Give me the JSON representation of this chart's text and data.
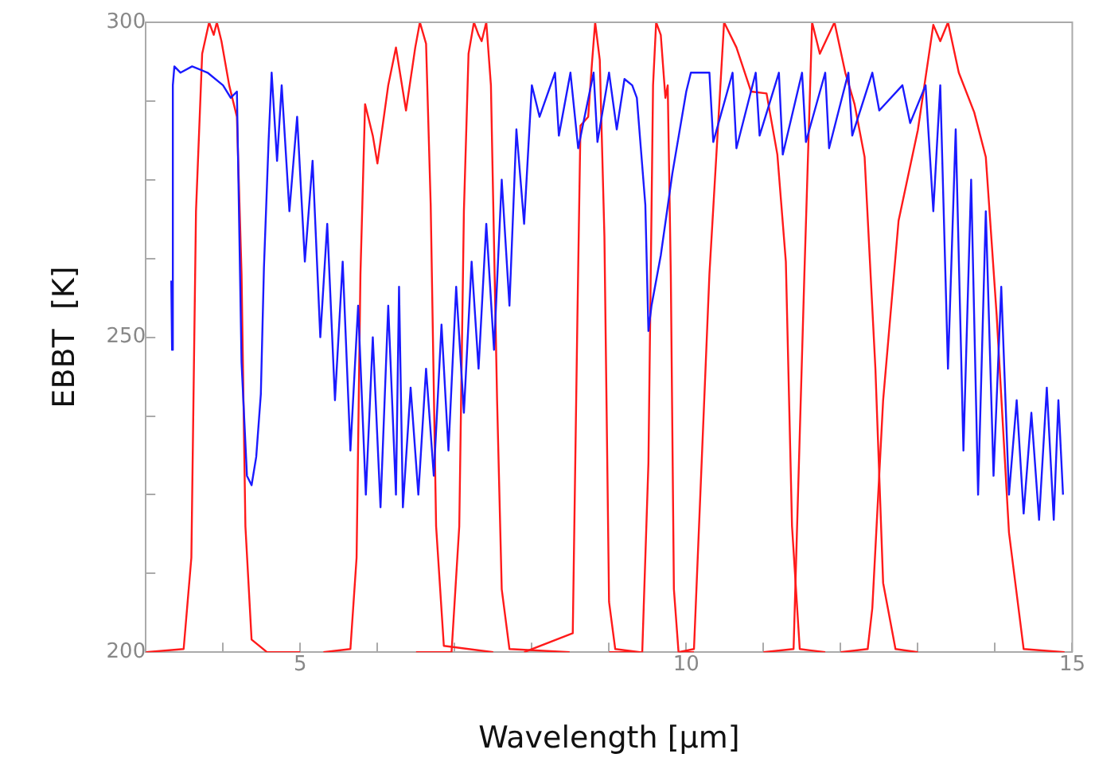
{
  "chart_data": {
    "type": "line",
    "xlabel": "Wavelength [μm]",
    "ylabel": "EBBT  [K]",
    "xlim": [
      3,
      15
    ],
    "ylim": [
      200,
      300
    ],
    "legend": false,
    "grid": false,
    "marker": "none",
    "xticks": [
      {
        "value": 3,
        "label": null
      },
      {
        "value": 4,
        "label": null
      },
      5,
      {
        "value": 6,
        "label": null
      },
      {
        "value": 7,
        "label": null
      },
      {
        "value": 8,
        "label": null
      },
      {
        "value": 9,
        "label": null
      },
      10,
      {
        "value": 11,
        "label": null
      },
      {
        "value": 12,
        "label": null
      },
      {
        "value": 13,
        "label": null
      },
      {
        "value": 14,
        "label": null
      },
      15
    ],
    "yticks": [
      200,
      {
        "value": 212.5,
        "label": null
      },
      {
        "value": 225,
        "label": null
      },
      {
        "value": 237.5,
        "label": null
      },
      250,
      {
        "value": 262.5,
        "label": null
      },
      {
        "value": 275,
        "label": null
      },
      {
        "value": 287.5,
        "label": null
      },
      300
    ],
    "series": [
      {
        "color": "#1a1aff",
        "x": [
          3.33,
          3.34,
          3.35,
          3.37,
          3.45,
          3.6,
          3.8,
          4.0,
          4.1,
          4.18,
          4.24,
          4.31,
          4.37,
          4.43,
          4.49,
          4.53,
          4.59,
          4.63,
          4.7,
          4.76,
          4.86,
          4.96,
          5.06,
          5.16,
          5.26,
          5.35,
          5.45,
          5.55,
          5.65,
          5.75,
          5.85,
          5.94,
          6.04,
          6.14,
          6.24,
          6.28,
          6.33,
          6.43,
          6.53,
          6.63,
          6.73,
          6.83,
          6.92,
          7.02,
          7.12,
          7.22,
          7.31,
          7.41,
          7.51,
          7.61,
          7.71,
          7.8,
          7.9,
          8.0,
          8.1,
          8.3,
          8.35,
          8.5,
          8.6,
          8.8,
          8.85,
          9.0,
          9.1,
          9.2,
          9.3,
          9.36,
          9.47,
          9.51,
          9.55,
          9.67,
          9.82,
          10.0,
          10.06,
          10.3,
          10.35,
          10.6,
          10.65,
          10.9,
          10.95,
          11.2,
          11.25,
          11.5,
          11.55,
          11.8,
          11.85,
          12.1,
          12.15,
          12.41,
          12.5,
          12.8,
          12.9,
          13.1,
          13.2,
          13.29,
          13.39,
          13.49,
          13.59,
          13.69,
          13.78,
          13.88,
          13.98,
          14.08,
          14.18,
          14.28,
          14.37,
          14.47,
          14.57,
          14.67,
          14.76,
          14.82,
          14.88
        ],
        "values": [
          259,
          248,
          290,
          293,
          292,
          293,
          292,
          290,
          288,
          289,
          246,
          228,
          226.5,
          231,
          241,
          261,
          281,
          292,
          278,
          290,
          270,
          285,
          262,
          278,
          250,
          268,
          240,
          262,
          232,
          255,
          225,
          250,
          223,
          255,
          225,
          258,
          223,
          242,
          225,
          245,
          228,
          252,
          232,
          258,
          238,
          262,
          245,
          268,
          248,
          275,
          255,
          283,
          268,
          290,
          285,
          292,
          282,
          292,
          280,
          292,
          281,
          292,
          283,
          291,
          290,
          288,
          271,
          251,
          255,
          263,
          276,
          289,
          292,
          292,
          281,
          292,
          280,
          292,
          282,
          292,
          279,
          292,
          281,
          292,
          280,
          292,
          282,
          292,
          286,
          290,
          284,
          290,
          270,
          290,
          245,
          283,
          232,
          275,
          225,
          270,
          228,
          258,
          225,
          240,
          222,
          238,
          221,
          242,
          221,
          240,
          225
        ]
      },
      {
        "color": "#ff1a1a",
        "x": [
          3.0,
          3.49,
          3.59,
          3.65,
          3.73,
          3.82,
          3.88,
          3.92,
          3.98,
          4.08,
          4.18,
          4.24,
          4.29,
          4.37,
          4.57,
          5.0
        ],
        "values": [
          200,
          200.5,
          215,
          270,
          295,
          300,
          298,
          300,
          297,
          290,
          285,
          260,
          220,
          202,
          200,
          200
        ]
      },
      {
        "color": "#ff1a1a",
        "x": [
          5.3,
          5.65,
          5.73,
          5.78,
          5.84,
          5.94,
          6.0,
          6.14,
          6.24,
          6.37,
          6.49,
          6.55,
          6.63,
          6.69,
          6.76,
          6.86,
          7.5
        ],
        "values": [
          200,
          200.5,
          215,
          260,
          287,
          282,
          277.6,
          290,
          296,
          286,
          296,
          300,
          296.6,
          271,
          220,
          201,
          200
        ]
      },
      {
        "color": "#ff1a1a",
        "x": [
          6.5,
          6.96,
          7.06,
          7.12,
          7.18,
          7.25,
          7.31,
          7.35,
          7.41,
          7.47,
          7.55,
          7.61,
          7.71,
          8.49
        ],
        "values": [
          200,
          200,
          220,
          270,
          295,
          300,
          298,
          297,
          300,
          290,
          240,
          210,
          200.5,
          200
        ]
      },
      {
        "color": "#ff1a1a",
        "x": [
          7.9,
          8.53,
          8.59,
          8.63,
          8.73,
          8.78,
          8.82,
          8.88,
          8.94,
          9.0,
          9.08,
          9.4
        ],
        "values": [
          200,
          203,
          253,
          283.6,
          285,
          293.7,
          300,
          294,
          266,
          208,
          200.5,
          200
        ]
      },
      {
        "color": "#ff1a1a",
        "x": [
          9.0,
          9.43,
          9.51,
          9.57,
          9.61,
          9.67,
          9.73,
          9.76,
          9.8,
          9.84,
          9.9,
          10.1
        ],
        "values": [
          200,
          200,
          230,
          290,
          300,
          298,
          288,
          290,
          260,
          210,
          200,
          200
        ]
      },
      {
        "color": "#ff1a1a",
        "x": [
          9.9,
          10.1,
          10.3,
          10.49,
          10.65,
          10.84,
          11.04,
          11.18,
          11.29,
          11.37,
          11.47,
          11.8
        ],
        "values": [
          200,
          200.5,
          260,
          300,
          296,
          289,
          288.7,
          279,
          262,
          220,
          200.5,
          200
        ]
      },
      {
        "color": "#ff1a1a",
        "x": [
          11.0,
          11.39,
          11.53,
          11.63,
          11.73,
          11.92,
          12.06,
          12.18,
          12.31,
          12.45,
          12.55,
          12.71,
          13.0
        ],
        "values": [
          200,
          200.5,
          260,
          300,
          295,
          300,
          292,
          287,
          278.6,
          245,
          211,
          200.5,
          200
        ]
      },
      {
        "color": "#ff1a1a",
        "x": [
          12.0,
          12.35,
          12.41,
          12.55,
          12.75,
          13.0,
          13.2,
          13.29,
          13.39,
          13.53,
          13.73,
          13.88,
          14.02,
          14.18,
          14.37,
          14.9
        ],
        "values": [
          200,
          200.5,
          207,
          240,
          268.5,
          282.9,
          299.6,
          297,
          300,
          292,
          285.7,
          278.6,
          253.6,
          219,
          200.5,
          200
        ]
      }
    ]
  }
}
